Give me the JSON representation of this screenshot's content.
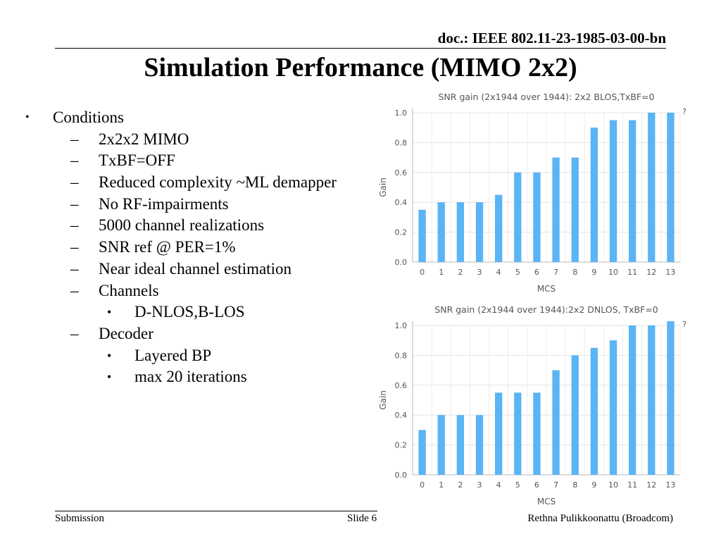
{
  "header": {
    "doc_id": "doc.: IEEE 802.11-23-1985-03-00-bn",
    "title": "Simulation Performance (MIMO 2x2)"
  },
  "bullets": [
    {
      "level": 0,
      "marker": "•",
      "text": "Conditions"
    },
    {
      "level": 1,
      "marker": "–",
      "text": "2x2x2 MIMO"
    },
    {
      "level": 1,
      "marker": "–",
      "text": "TxBF=OFF"
    },
    {
      "level": 1,
      "marker": "–",
      "text": "Reduced complexity ~ML demapper"
    },
    {
      "level": 1,
      "marker": "–",
      "text": "No RF-impairments"
    },
    {
      "level": 1,
      "marker": "–",
      "text": "5000 channel realizations"
    },
    {
      "level": 1,
      "marker": "–",
      "text": "SNR ref @ PER=1%"
    },
    {
      "level": 1,
      "marker": "–",
      "text": "Near ideal channel estimation"
    },
    {
      "level": 1,
      "marker": "–",
      "text": "Channels"
    },
    {
      "level": 2,
      "marker": "•",
      "text": "D-NLOS,B-LOS"
    },
    {
      "level": 1,
      "marker": "–",
      "text": "Decoder"
    },
    {
      "level": 2,
      "marker": "•",
      "text": "Layered BP"
    },
    {
      "level": 2,
      "marker": "•",
      "text": "max 20 iterations"
    }
  ],
  "footer": {
    "left": "Submission",
    "center": "Slide 6",
    "right": "Rethna Pulikkoonattu (Broadcom)"
  },
  "chart_data": [
    {
      "type": "bar",
      "title": "SNR gain (2x1944 over 1944): 2x2 BLOS,TxBF=0",
      "xlabel": "MCS",
      "ylabel": "Gain",
      "corner_mark": "?",
      "categories": [
        "0",
        "1",
        "2",
        "3",
        "4",
        "5",
        "6",
        "7",
        "8",
        "9",
        "10",
        "11",
        "12",
        "13"
      ],
      "values": [
        0.35,
        0.4,
        0.4,
        0.4,
        0.45,
        0.6,
        0.6,
        0.7,
        0.7,
        0.9,
        0.95,
        0.95,
        1.0,
        1.0
      ],
      "ylim": [
        0,
        1.0
      ],
      "yticks": [
        "0.0",
        "0.2",
        "0.4",
        "0.6",
        "0.8",
        "1.0"
      ],
      "grid": true,
      "color": "#5ab4f5"
    },
    {
      "type": "bar",
      "title": "SNR gain (2x1944 over 1944):2x2 DNLOS, TxBF=0",
      "xlabel": "MCS",
      "ylabel": "Gain",
      "corner_mark": "?",
      "categories": [
        "0",
        "1",
        "2",
        "3",
        "4",
        "5",
        "6",
        "7",
        "8",
        "9",
        "10",
        "11",
        "12",
        "13"
      ],
      "values": [
        0.3,
        0.4,
        0.4,
        0.4,
        0.55,
        0.55,
        0.55,
        0.7,
        0.8,
        0.85,
        0.9,
        1.0,
        1.0,
        1.03
      ],
      "ylim": [
        0,
        1.0
      ],
      "yticks": [
        "0.0",
        "0.2",
        "0.4",
        "0.6",
        "0.8",
        "1.0"
      ],
      "grid": true,
      "color": "#5ab4f5"
    }
  ]
}
